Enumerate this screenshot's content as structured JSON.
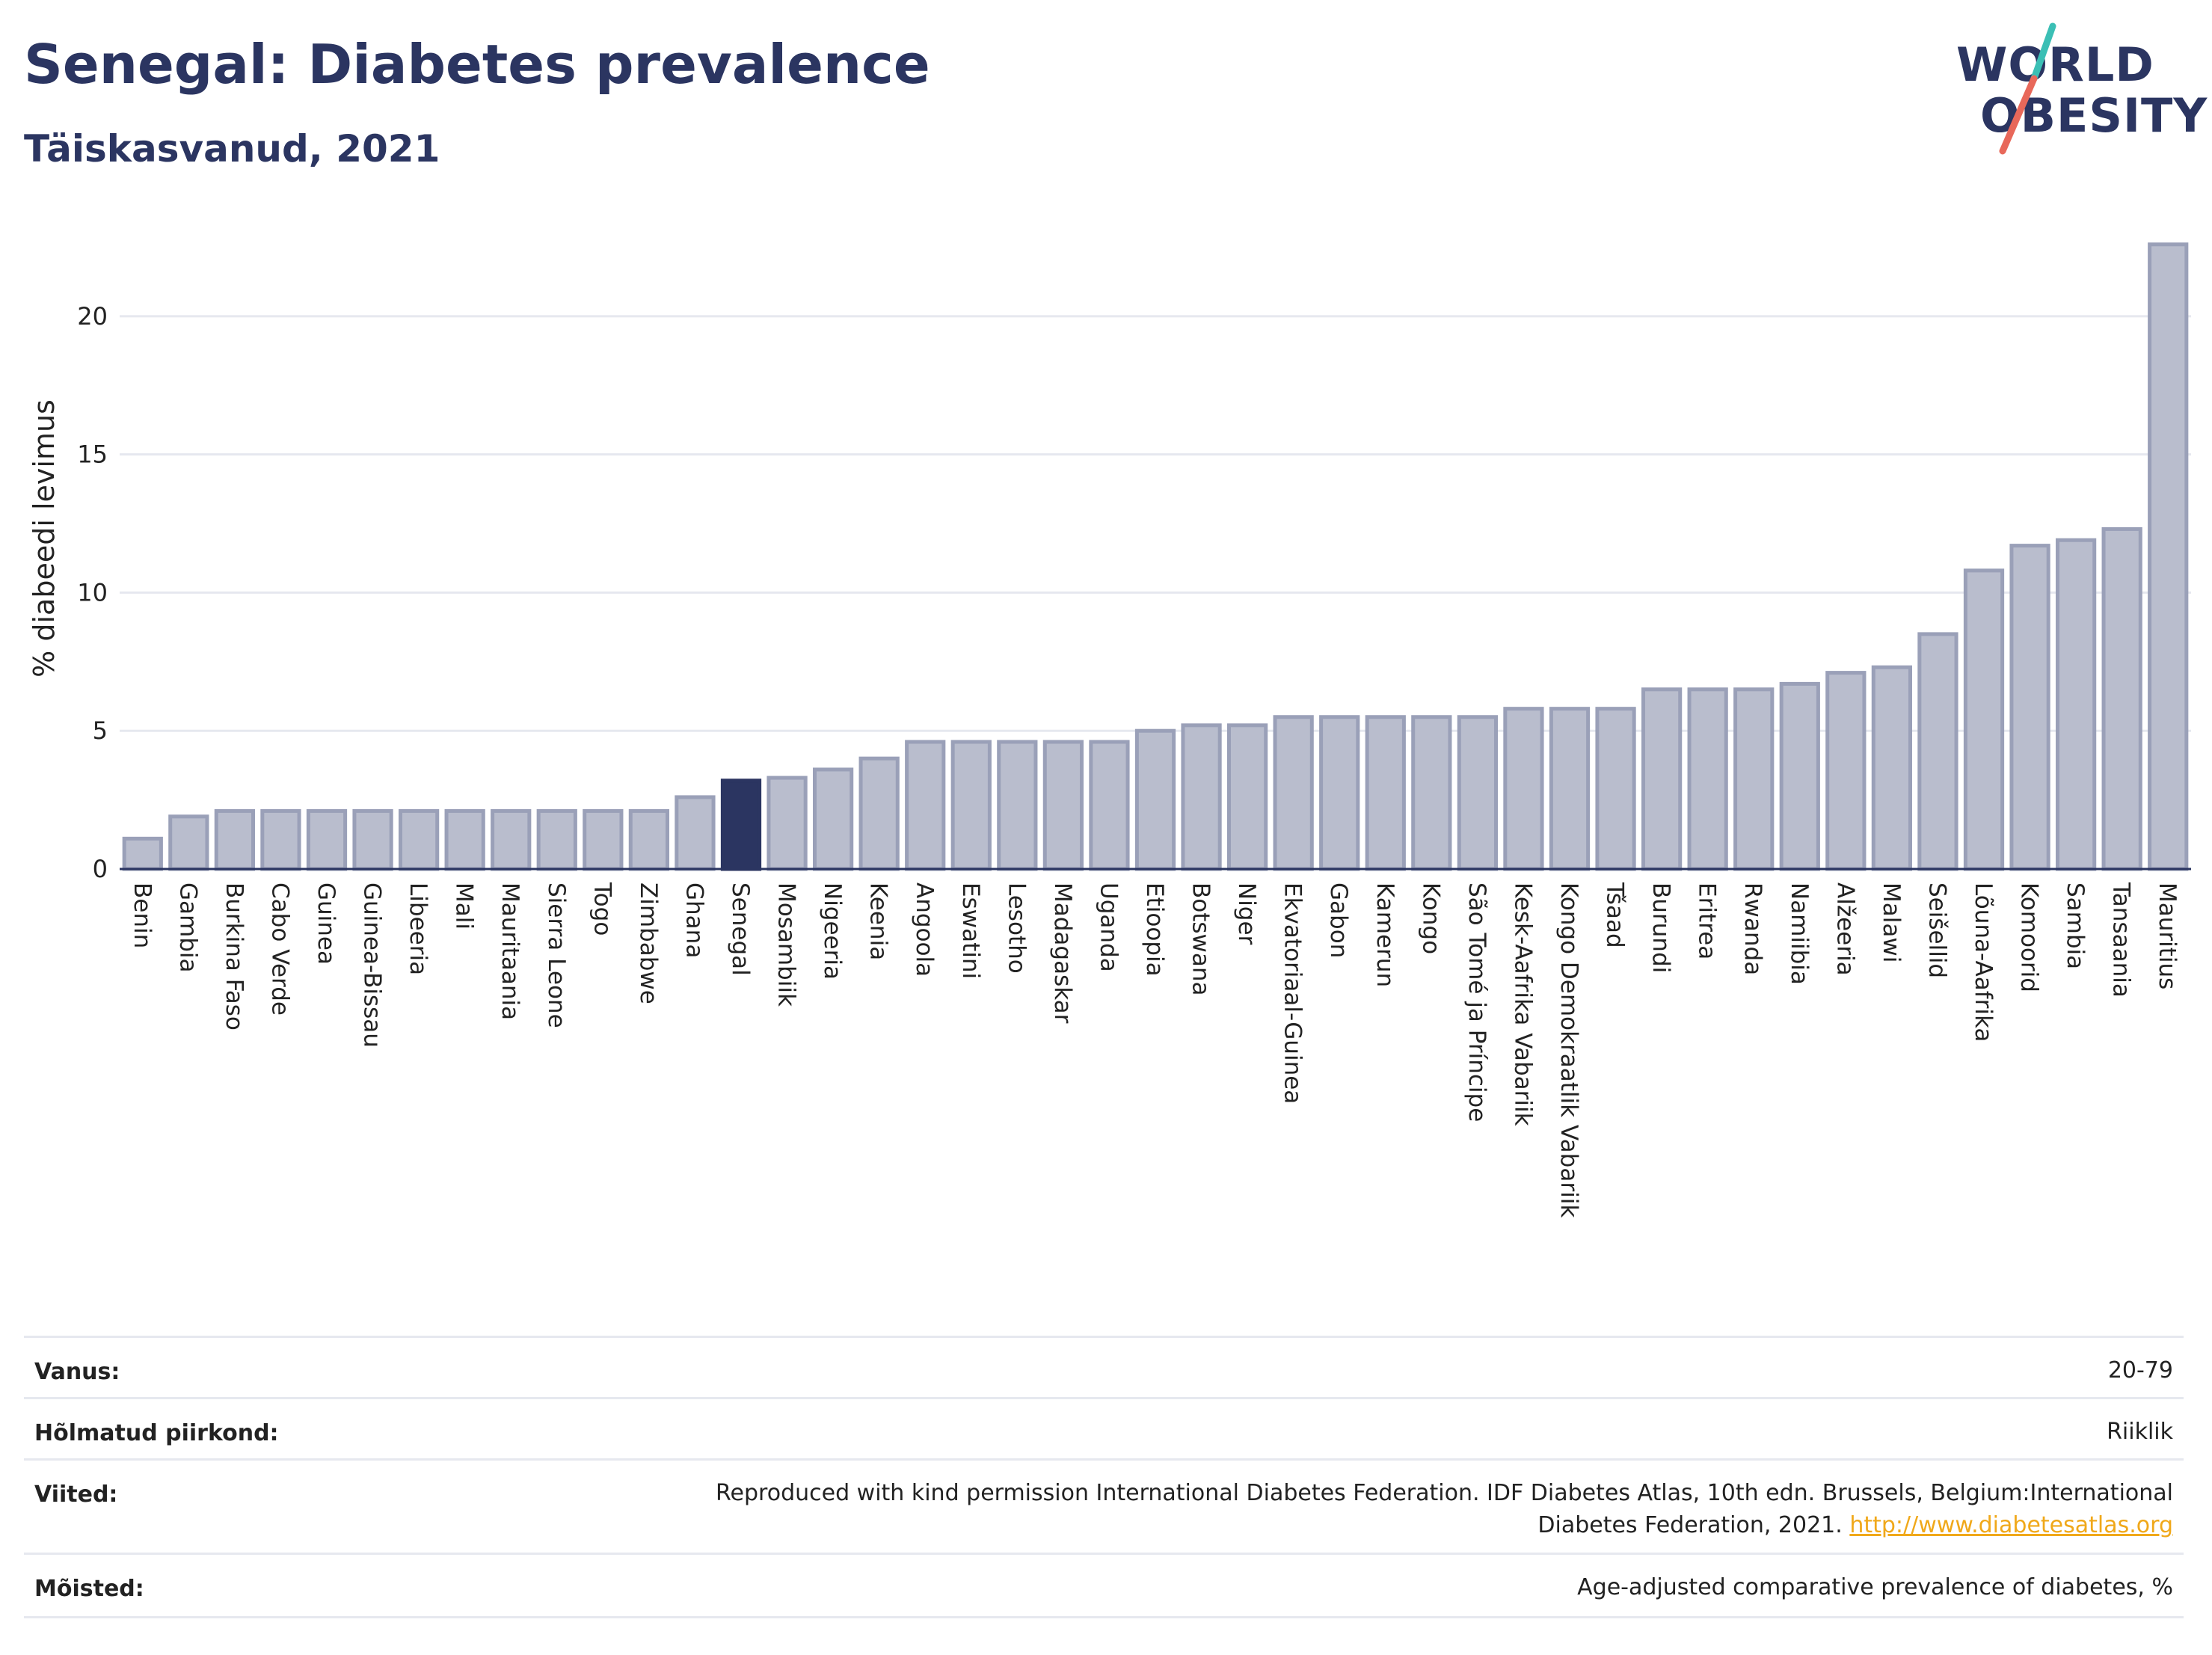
{
  "header": {
    "title": "Senegal: Diabetes prevalence",
    "subtitle": "Täiskasvanud, 2021"
  },
  "logo": {
    "line1": "WORLD",
    "line2": "OBESITY",
    "slash_colors": [
      "#3bbfb5",
      "#e8685a"
    ]
  },
  "colors": {
    "bar_fill": "#b9bdcd",
    "bar_stroke": "#9aa0b8",
    "highlight": "#2b3561",
    "grid": "#e6e8ef"
  },
  "chart_data": {
    "type": "bar",
    "ylabel": "% diabeedi levimus",
    "ylim": [
      0,
      23
    ],
    "yticks": [
      0,
      5,
      10,
      15,
      20
    ],
    "grid": true,
    "highlight_category": "Senegal",
    "categories": [
      "Benin",
      "Gambia",
      "Burkina Faso",
      "Cabo Verde",
      "Guinea",
      "Guinea-Bissau",
      "Libeeria",
      "Mali",
      "Mauritaania",
      "Sierra Leone",
      "Togo",
      "Zimbabwe",
      "Ghana",
      "Senegal",
      "Mosambiik",
      "Nigeeria",
      "Keenia",
      "Angoola",
      "Eswatini",
      "Lesotho",
      "Madagaskar",
      "Uganda",
      "Etioopia",
      "Botswana",
      "Niger",
      "Ekvatoriaal-Guinea",
      "Gabon",
      "Kamerun",
      "Kongo",
      "São Tomé ja Príncipe",
      "Kesk-Aafrika Vabariik",
      "Kongo Demokraatlik Vabariik",
      "Tšaad",
      "Burundi",
      "Eritrea",
      "Rwanda",
      "Namiibia",
      "Alžeeria",
      "Malawi",
      "Seišellid",
      "Lõuna-Aafrika",
      "Komoorid",
      "Sambia",
      "Tansaania",
      "Mauritius"
    ],
    "values": [
      1.1,
      1.9,
      2.1,
      2.1,
      2.1,
      2.1,
      2.1,
      2.1,
      2.1,
      2.1,
      2.1,
      2.1,
      2.6,
      3.2,
      3.3,
      3.6,
      4.0,
      4.6,
      4.6,
      4.6,
      4.6,
      4.6,
      5.0,
      5.2,
      5.2,
      5.5,
      5.5,
      5.5,
      5.5,
      5.5,
      5.8,
      5.8,
      5.8,
      6.5,
      6.5,
      6.5,
      6.7,
      7.1,
      7.3,
      8.5,
      10.8,
      11.7,
      11.9,
      12.3,
      22.6
    ]
  },
  "meta": [
    {
      "key": "Vanus:",
      "value": "20-79"
    },
    {
      "key": "Hõlmatud piirkond:",
      "value": "Riiklik"
    },
    {
      "key": "Viited:",
      "value_line1": "Reproduced with kind permission International Diabetes Federation.  IDF Diabetes Atlas, 10th edn. Brussels, Belgium:International",
      "value_line2": "Diabetes Federation, 2021. ",
      "link": "http://www.diabetesatlas.org"
    },
    {
      "key": "Mõisted:",
      "value": "Age-adjusted comparative prevalence of diabetes, %"
    }
  ]
}
